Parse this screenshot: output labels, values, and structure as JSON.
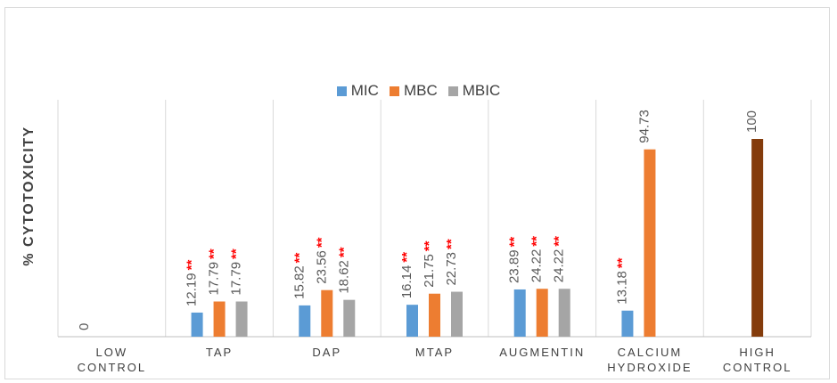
{
  "chart_data": {
    "type": "bar",
    "ylabel": "% CYTOTOXICITY",
    "xlabel": "",
    "ylim": [
      0,
      110
    ],
    "categories": [
      [
        "LOW",
        "CONTROL"
      ],
      [
        "TAP"
      ],
      [
        "DAP"
      ],
      [
        "MTAP"
      ],
      [
        "AUGMENTIN"
      ],
      [
        "CALCIUM",
        "HYDROXIDE"
      ],
      [
        "HIGH",
        "CONTROL"
      ]
    ],
    "series": [
      {
        "name": "MIC",
        "color": "#5b9bd5",
        "values": [
          0,
          12.19,
          15.82,
          16.14,
          23.89,
          13.18,
          null
        ]
      },
      {
        "name": "MBC",
        "color": "#ed7d31",
        "values": [
          null,
          17.79,
          23.56,
          21.75,
          24.22,
          94.73,
          null
        ]
      },
      {
        "name": "MBIC",
        "color": "#a5a5a5",
        "values": [
          null,
          17.79,
          18.62,
          22.73,
          24.22,
          null,
          null
        ]
      }
    ],
    "extra_bar": {
      "category_index": 6,
      "value": 100,
      "color": "#843c0c",
      "label": "100"
    },
    "value_labels": [
      [
        "0",
        null,
        null
      ],
      [
        "12.19",
        "17.79",
        "17.79"
      ],
      [
        "15.82",
        "23.56",
        "18.62"
      ],
      [
        "16.14",
        "21.75",
        "22.73"
      ],
      [
        "23.89",
        "24.22",
        "24.22"
      ],
      [
        "13.18",
        "94.73",
        null
      ],
      [
        null,
        null,
        null
      ]
    ],
    "significance_marker": "**",
    "significant": [
      [
        false,
        false,
        false
      ],
      [
        true,
        true,
        true
      ],
      [
        true,
        true,
        true
      ],
      [
        true,
        true,
        true
      ],
      [
        true,
        true,
        true
      ],
      [
        true,
        false,
        false
      ],
      [
        false,
        false,
        false
      ]
    ],
    "legend_position": "top-center",
    "grid": false
  }
}
